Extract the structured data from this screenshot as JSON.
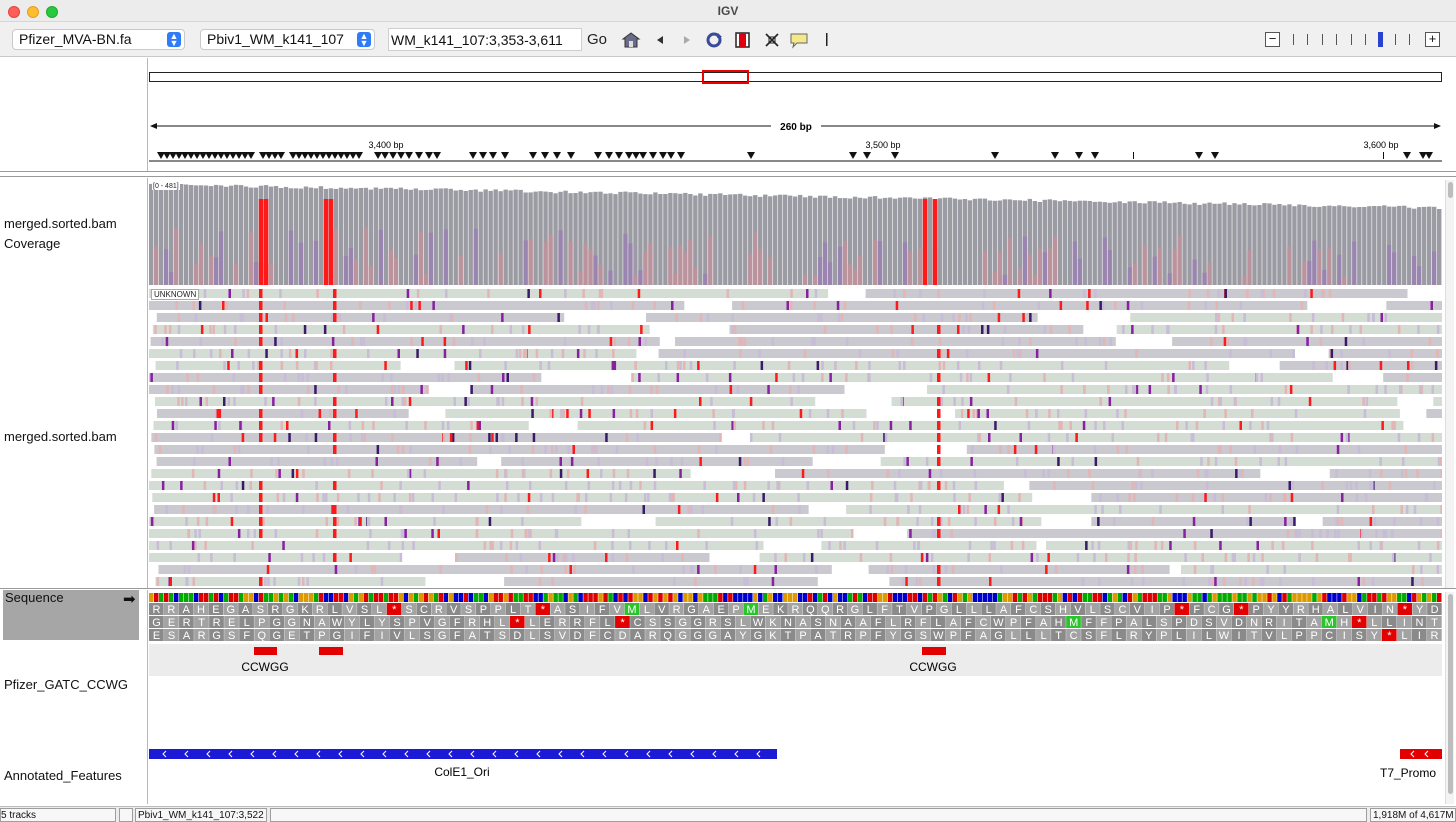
{
  "window": {
    "title": "IGV"
  },
  "toolbar": {
    "genome": "Pfizer_MVA-BN.fa",
    "chromosome": "Pbiv1_WM_k141_107",
    "locus": "WM_k141_107:3,353-3,611",
    "go_label": "Go",
    "icons": [
      "home-icon",
      "back-icon",
      "forward-icon",
      "refresh-icon",
      "roi-icon",
      "resize-icon",
      "popup-text-icon"
    ]
  },
  "ruler": {
    "span_label": "260 bp",
    "ticks": [
      "3,400 bp",
      "3,500 bp",
      "3,600 bp"
    ]
  },
  "tracks": {
    "coverage_name": "merged.sorted.bam Coverage",
    "coverage_range": "[0 - 481]",
    "alignment_name": "merged.sorted.bam",
    "group_label": "UNKNOWN",
    "sequence_name": "Sequence",
    "gatc_name": "Pfizer_GATC_CCWG",
    "annot_name": "Annotated_Features"
  },
  "sequence": {
    "frames": [
      "RRAHEGASRGKRLVSL*SCRVSPPLT*ASIFVMLVRGAEPMEKRQQRGLFTVPGLLLAFCSHVLSCVIP*FCG*PYYRHALVIN*YD",
      "GERTRELPGGNAWYLYSPVGFRHL*LERRFL*CSSGGRSLWKNASNAAFLRFLAFCWPFAHMFFPALSPDSVDNRITAMH*LLINT",
      "ESARGSFQGETPGIFIVLSGFATSDLSVDFCDARQGGGAYGKTPATRPFYGSWPFAGLLLTCSFLRYPLILWITVLPPCISY*LIR"
    ]
  },
  "features": {
    "gatc": [
      {
        "label": "CCWGG"
      },
      {
        "label": "CCWGG"
      }
    ],
    "annotations": [
      {
        "label": "ColE1_Ori"
      },
      {
        "label": "T7_Promo"
      }
    ]
  },
  "status": {
    "tracks": "5 tracks",
    "position": "Pbiv1_WM_k141_107:3,522",
    "memory": "1,918M of 4,617M"
  },
  "colors": {
    "read_bg": "#c9c9cf",
    "read_light": "#d3ddd3",
    "coverage": "#9b9ba3",
    "mismatch_red": "#ff1a1a",
    "mismatch_purple": "#8a1fa3",
    "annotation_blue": "#1b1bd6",
    "annotation_red": "#e30000"
  }
}
